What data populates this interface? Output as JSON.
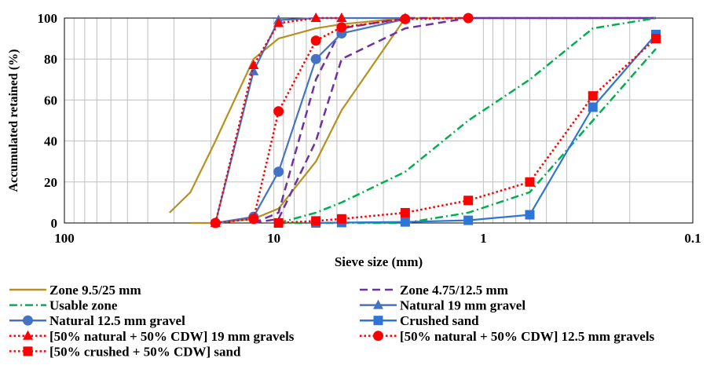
{
  "chart_data": {
    "type": "line",
    "x_scale": "log",
    "x_reversed": true,
    "xlabel": "Sieve size (mm)",
    "ylabel": "Accumulated retained (%)",
    "xlim": [
      100,
      0.1
    ],
    "ylim": [
      0,
      100
    ],
    "x_tick_labels": [
      "100",
      "10",
      "1",
      "0.1"
    ],
    "x_ticks": [
      100,
      10,
      1,
      0.1
    ],
    "y_ticks": [
      0,
      20,
      40,
      60,
      80,
      100
    ],
    "y_tick_labels": [
      "0",
      "20",
      "40",
      "60",
      "80",
      "100"
    ],
    "grid": "vertical log minor gridlines and horizontal gridlines",
    "legend_position": "bottom, two columns",
    "series": [
      {
        "name": "Zone 9.5/25 mm",
        "color": "#b8901e",
        "dash": "solid",
        "marker": "none",
        "points": [
          [
            31.5,
            5
          ],
          [
            25,
            15
          ],
          [
            19,
            40
          ],
          [
            12.5,
            80
          ],
          [
            9.5,
            90
          ],
          [
            6.3,
            95
          ],
          [
            4.75,
            97
          ],
          [
            2.36,
            100
          ]
        ]
      },
      {
        "name": "Zone 9.5/25 mm",
        "color": "#b8901e",
        "dash": "solid",
        "marker": "none",
        "points": [
          [
            25,
            0
          ],
          [
            19,
            0
          ],
          [
            12.5,
            2
          ],
          [
            9.5,
            7
          ],
          [
            6.3,
            30
          ],
          [
            4.75,
            55
          ],
          [
            2.36,
            100
          ],
          [
            0.15,
            100
          ]
        ]
      },
      {
        "name": "Zone 4.75/12.5 mm",
        "color": "#7030a0",
        "dash": "dash",
        "marker": "none",
        "points": [
          [
            12.5,
            0
          ],
          [
            9.5,
            2
          ],
          [
            6.3,
            40
          ],
          [
            4.75,
            80
          ],
          [
            2.36,
            95
          ],
          [
            1.18,
            100
          ],
          [
            0.15,
            100
          ]
        ]
      },
      {
        "name": "Zone 4.75/12.5 mm",
        "color": "#7030a0",
        "dash": "dash",
        "marker": "none",
        "points": [
          [
            12.5,
            0
          ],
          [
            9.5,
            5
          ],
          [
            6.3,
            70
          ],
          [
            4.75,
            95
          ],
          [
            2.36,
            100
          ],
          [
            0.15,
            100
          ]
        ]
      },
      {
        "name": "Usable zone",
        "color": "#00b050",
        "dash": "dashdot",
        "marker": "none",
        "points": [
          [
            9.5,
            0
          ],
          [
            6.3,
            5
          ],
          [
            4.75,
            10
          ],
          [
            2.36,
            25
          ],
          [
            1.18,
            50
          ],
          [
            0.6,
            70
          ],
          [
            0.3,
            95
          ],
          [
            0.15,
            100
          ]
        ]
      },
      {
        "name": "Usable zone",
        "color": "#00b050",
        "dash": "dashdot",
        "marker": "none",
        "points": [
          [
            9.5,
            0
          ],
          [
            6.3,
            0
          ],
          [
            4.75,
            0
          ],
          [
            2.36,
            0
          ],
          [
            1.18,
            5
          ],
          [
            0.6,
            15
          ],
          [
            0.3,
            50
          ],
          [
            0.15,
            85
          ]
        ]
      },
      {
        "name": "Natural 19 mm gravel",
        "color": "#4472c4",
        "dash": "solid",
        "marker": "triangle",
        "points": [
          [
            19,
            0
          ],
          [
            12.5,
            74
          ],
          [
            9.5,
            99
          ],
          [
            6.3,
            100
          ],
          [
            4.75,
            100
          ],
          [
            2.36,
            100
          ]
        ]
      },
      {
        "name": "Natural 12.5 mm gravel",
        "color": "#4472c4",
        "dash": "solid",
        "marker": "circle",
        "points": [
          [
            19,
            0
          ],
          [
            12.5,
            3
          ],
          [
            9.5,
            25
          ],
          [
            6.3,
            80
          ],
          [
            4.75,
            92.5
          ],
          [
            2.36,
            99.5
          ]
        ]
      },
      {
        "name": "Crushed sand",
        "color": "#2e75d6",
        "dash": "solid",
        "marker": "square",
        "points": [
          [
            6.3,
            0
          ],
          [
            4.75,
            0.2
          ],
          [
            2.36,
            0.5
          ],
          [
            1.18,
            1.3
          ],
          [
            0.6,
            4
          ],
          [
            0.3,
            56.5
          ],
          [
            0.15,
            92
          ]
        ]
      },
      {
        "name": "[50% natural + 50% CDW] 19 mm gravels",
        "color": "#ff0000",
        "dash": "dot",
        "marker": "triangle",
        "points": [
          [
            19,
            0
          ],
          [
            12.5,
            77
          ],
          [
            9.5,
            97.5
          ],
          [
            6.3,
            100
          ],
          [
            4.75,
            100
          ]
        ]
      },
      {
        "name": "[50% natural + 50% CDW] 12.5 mm gravels",
        "color": "#ff0000",
        "dash": "dot",
        "marker": "circle",
        "points": [
          [
            19,
            0
          ],
          [
            12.5,
            2
          ],
          [
            9.5,
            54.5
          ],
          [
            6.3,
            89
          ],
          [
            4.75,
            95.5
          ],
          [
            2.36,
            99.5
          ],
          [
            1.18,
            100
          ]
        ]
      },
      {
        "name": "[50% crushed + 50% CDW] sand",
        "color": "#ff0000",
        "dash": "dot",
        "marker": "square",
        "points": [
          [
            9.5,
            0
          ],
          [
            6.3,
            1
          ],
          [
            4.75,
            2
          ],
          [
            2.36,
            5
          ],
          [
            1.18,
            11
          ],
          [
            0.6,
            20
          ],
          [
            0.3,
            62
          ],
          [
            0.15,
            90
          ]
        ]
      }
    ],
    "legend": [
      {
        "label": "Zone 9.5/25 mm",
        "color": "#b8901e",
        "dash": "solid",
        "marker": "none"
      },
      {
        "label": "Zone 4.75/12.5 mm",
        "color": "#7030a0",
        "dash": "dash",
        "marker": "none"
      },
      {
        "label": "Usable zone",
        "color": "#00b050",
        "dash": "dashdot",
        "marker": "none"
      },
      {
        "label": "Natural 19 mm gravel",
        "color": "#4472c4",
        "dash": "solid",
        "marker": "triangle"
      },
      {
        "label": "Natural 12.5 mm gravel",
        "color": "#4472c4",
        "dash": "solid",
        "marker": "circle"
      },
      {
        "label": "Crushed sand",
        "color": "#2e75d6",
        "dash": "solid",
        "marker": "square"
      },
      {
        "label": "[50% natural + 50% CDW] 19 mm gravels",
        "color": "#ff0000",
        "dash": "dot",
        "marker": "triangle"
      },
      {
        "label": "[50% natural + 50% CDW] 12.5 mm gravels",
        "color": "#ff0000",
        "dash": "dot",
        "marker": "circle"
      },
      {
        "label": "[50% crushed + 50% CDW] sand",
        "color": "#ff0000",
        "dash": "dot",
        "marker": "square"
      }
    ]
  }
}
